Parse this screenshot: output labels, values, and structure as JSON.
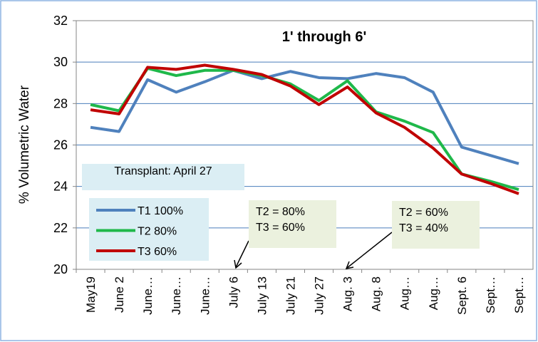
{
  "chart_data": {
    "type": "line",
    "title": "1' through 6'",
    "y_label": "% Volumetric Water",
    "categories": [
      "May19",
      "June 2",
      "June…",
      "June…",
      "June…",
      "July 6",
      "July 13",
      "July 21",
      "July 27",
      "Aug. 3",
      "Aug. 8",
      "Aug…",
      "Aug…",
      "Sept. 6",
      "Sept…",
      "Sept…"
    ],
    "series": [
      {
        "name": "T1  100%",
        "color": "#4f81bd",
        "values": [
          26.85,
          26.65,
          29.15,
          28.55,
          29.05,
          29.6,
          29.2,
          29.55,
          29.25,
          29.2,
          29.45,
          29.25,
          28.55,
          25.9,
          25.5,
          25.1
        ]
      },
      {
        "name": "T2  80%",
        "color": "#1fb84a",
        "values": [
          27.95,
          27.65,
          29.7,
          29.35,
          29.6,
          29.6,
          29.35,
          28.95,
          28.15,
          29.1,
          27.6,
          27.15,
          26.6,
          24.6,
          24.25,
          23.85
        ]
      },
      {
        "name": "T3  60%",
        "color": "#c00000",
        "values": [
          27.7,
          27.5,
          29.75,
          29.65,
          29.85,
          29.65,
          29.4,
          28.85,
          27.95,
          28.8,
          27.55,
          26.85,
          25.85,
          24.6,
          24.15,
          23.65
        ]
      }
    ],
    "ylim": [
      20,
      32
    ],
    "yticks": [
      20,
      22,
      24,
      26,
      28,
      30,
      32
    ],
    "grid": true,
    "annotations": [
      "Transplant: April 27",
      "T2 = 80%  T3 = 60%",
      "T2 = 60%  T3 = 40%"
    ]
  }
}
